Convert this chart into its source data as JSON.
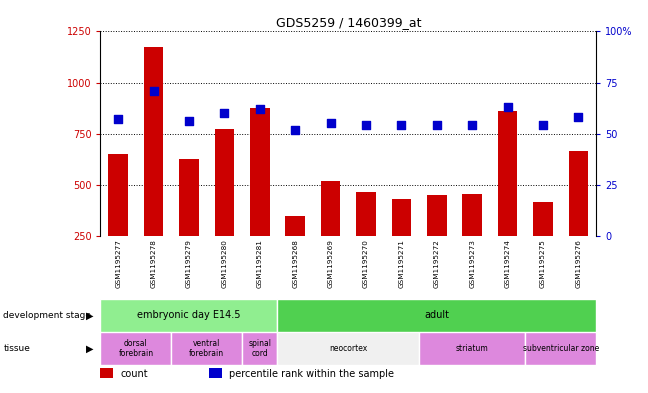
{
  "title": "GDS5259 / 1460399_at",
  "samples": [
    "GSM1195277",
    "GSM1195278",
    "GSM1195279",
    "GSM1195280",
    "GSM1195281",
    "GSM1195268",
    "GSM1195269",
    "GSM1195270",
    "GSM1195271",
    "GSM1195272",
    "GSM1195273",
    "GSM1195274",
    "GSM1195275",
    "GSM1195276"
  ],
  "counts": [
    650,
    1175,
    625,
    775,
    875,
    345,
    520,
    465,
    430,
    450,
    455,
    860,
    415,
    665
  ],
  "percentiles": [
    57,
    71,
    56,
    60,
    62,
    52,
    55,
    54,
    54,
    54,
    54,
    63,
    54,
    58
  ],
  "bar_color": "#cc0000",
  "dot_color": "#0000cc",
  "ylim_left": [
    250,
    1250
  ],
  "ylim_right": [
    0,
    100
  ],
  "yticks_left": [
    250,
    500,
    750,
    1000,
    1250
  ],
  "yticks_right": [
    0,
    25,
    50,
    75,
    100
  ],
  "development_stages": [
    {
      "label": "embryonic day E14.5",
      "start": 0,
      "end": 5,
      "color": "#90ee90"
    },
    {
      "label": "adult",
      "start": 5,
      "end": 14,
      "color": "#50d050"
    }
  ],
  "tissues": [
    {
      "label": "dorsal\nforebrain",
      "start": 0,
      "end": 2,
      "color": "#dd88dd"
    },
    {
      "label": "ventral\nforebrain",
      "start": 2,
      "end": 4,
      "color": "#dd88dd"
    },
    {
      "label": "spinal\ncord",
      "start": 4,
      "end": 5,
      "color": "#dd88dd"
    },
    {
      "label": "neocortex",
      "start": 5,
      "end": 9,
      "color": "#f0f0f0"
    },
    {
      "label": "striatum",
      "start": 9,
      "end": 12,
      "color": "#dd88dd"
    },
    {
      "label": "subventricular zone",
      "start": 12,
      "end": 14,
      "color": "#dd88dd"
    }
  ],
  "plot_bg": "#ffffff",
  "xtick_bg": "#d0d0d0",
  "grid_color": "#000000",
  "tick_color_left": "#cc0000",
  "tick_color_right": "#0000cc",
  "legend_count_label": "count",
  "legend_pct_label": "percentile rank within the sample",
  "dev_stage_label": "development stage",
  "tissue_label": "tissue"
}
